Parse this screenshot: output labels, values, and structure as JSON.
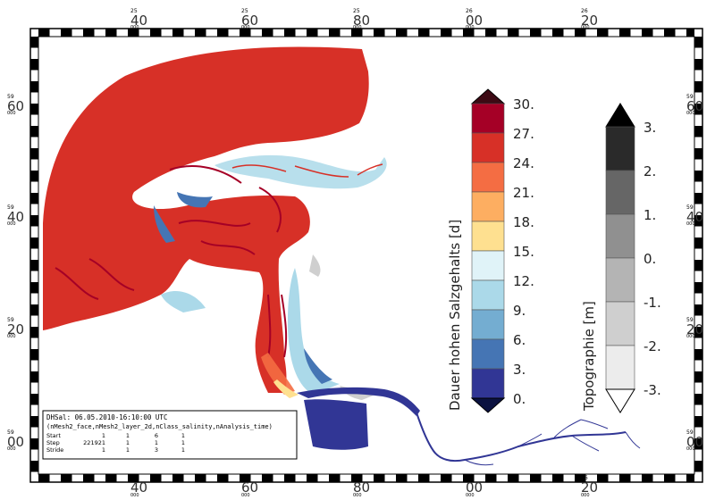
{
  "map": {
    "top_axis_labels": [
      {
        "sup": "25",
        "main": "40",
        "sub": "000"
      },
      {
        "sup": "25",
        "main": "60",
        "sub": "000"
      },
      {
        "sup": "25",
        "main": "80",
        "sub": "000"
      },
      {
        "sup": "26",
        "main": "00",
        "sub": "000"
      },
      {
        "sup": "26",
        "main": "20",
        "sub": "000"
      }
    ],
    "left_axis_labels": [
      {
        "sup": "59",
        "main": "60",
        "sub": "000"
      },
      {
        "sup": "59",
        "main": "40",
        "sub": "000"
      },
      {
        "sup": "59",
        "main": "20",
        "sub": "000"
      },
      {
        "sup": "59",
        "main": "00",
        "sub": "000"
      }
    ]
  },
  "colorbar_salinity": {
    "title": "Dauer hohen Salzgehalts [d]",
    "ticks": [
      "30.",
      "27.",
      "24.",
      "21.",
      "18.",
      "15.",
      "12.",
      "9.",
      "6.",
      "3.",
      "0."
    ],
    "colors": [
      "#a50026",
      "#d73027",
      "#f46d43",
      "#fdae61",
      "#fee090",
      "#e0f3f8",
      "#abd9e9",
      "#74add1",
      "#4575b4",
      "#313695"
    ],
    "over_color": "#3d0a14",
    "under_color": "#0b1240"
  },
  "colorbar_topo": {
    "title": "Topographie [m]",
    "ticks": [
      "3.",
      "2.",
      "1.",
      "0.",
      "-1.",
      "-2.",
      "-3."
    ],
    "colors": [
      "#2a2a2a",
      "#666666",
      "#909090",
      "#b4b4b4",
      "#cfcfcf",
      "#ececec"
    ],
    "over_color": "#000000",
    "under_color": "#ffffff"
  },
  "info_box": {
    "line1": "DHSal: 06.05.2010-16:10:00 UTC",
    "line2": "(nMesh2_face,nMesh2_layer_2d,nClass_salinity,nAnalysis_time)",
    "rows": [
      {
        "label": "Start",
        "v1": "1",
        "v2": "1",
        "v3": "6",
        "v4": "1"
      },
      {
        "label": "Step",
        "v1": "221921",
        "v2": "1",
        "v3": "1",
        "v4": "1"
      },
      {
        "label": "Stride",
        "v1": "1",
        "v2": "1",
        "v3": "3",
        "v4": "1"
      }
    ]
  },
  "field_colors": {
    "red": "#d73027",
    "dark_red": "#b5151d",
    "orange": "#f46d43",
    "yellow": "#fee090",
    "light_blue": "#abd9e9",
    "blue": "#4575b4",
    "navy": "#313695",
    "grey_land": "#cfcfcf"
  }
}
